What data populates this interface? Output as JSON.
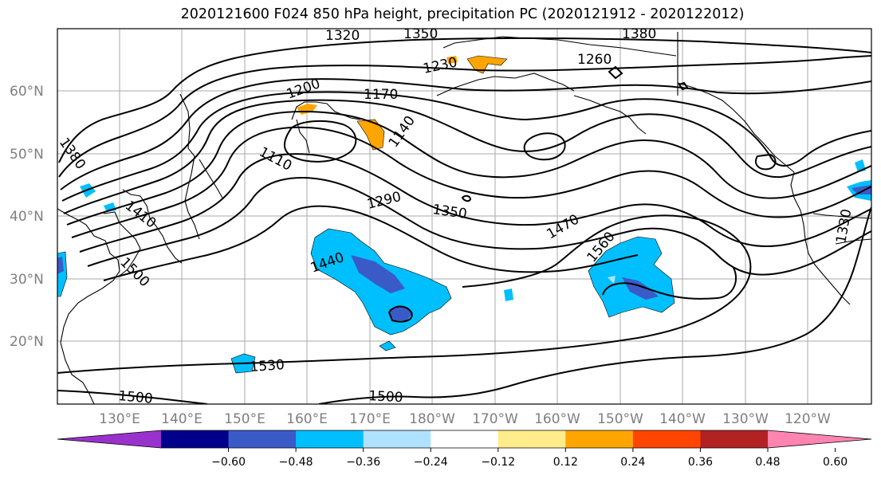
{
  "title": "2020121600 F024 850 hPa height, precipitation PC (2020121912 - 2020122012)",
  "lat_labels": [
    "60°N",
    "50°N",
    "40°N",
    "30°N",
    "20°N"
  ],
  "lon_labels": [
    "130°E",
    "140°E",
    "150°E",
    "160°E",
    "170°E",
    "180°W",
    "170°W",
    "160°W",
    "150°W",
    "140°W",
    "130°W",
    "120°W"
  ],
  "contour_labels": [
    "1320",
    "1350",
    "1380",
    "1260",
    "1230",
    "1200",
    "1170",
    "1140",
    "1110",
    "1380",
    "1410",
    "1290",
    "1350",
    "1470",
    "1440",
    "1500",
    "1560",
    "1330",
    "1530",
    "1500",
    "1500"
  ],
  "colorbar": {
    "colors": [
      "#9932CC",
      "#00008B",
      "#3A5BC7",
      "#00BFFF",
      "#AEE2FF",
      "#FFFFFF",
      "#FFEC8B",
      "#FFA500",
      "#FF4500",
      "#B22222",
      "#FF85B0"
    ],
    "ticks": [
      "−0.60",
      "−0.48",
      "−0.36",
      "−0.24",
      "−0.12",
      "0.12",
      "0.24",
      "0.36",
      "0.48",
      "0.60"
    ]
  }
}
